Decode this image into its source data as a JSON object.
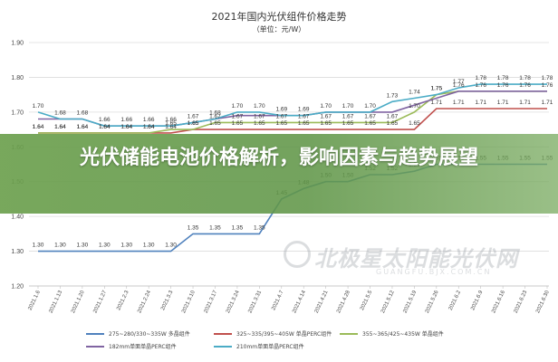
{
  "chart_data": {
    "type": "line",
    "title": "2021年国内光伏组件价格走势",
    "subtitle": "（单位：元/W）",
    "ylim": [
      1.2,
      1.9
    ],
    "yticks": [
      "1.20",
      "1.30",
      "1.40",
      "1.50",
      "1.60",
      "1.70",
      "1.80",
      "1.90"
    ],
    "categories": [
      "2021.1.6",
      "2021.1.13",
      "2021.1.20",
      "2021.1.27",
      "2021.2.3",
      "2021.2.24",
      "2021.3.3",
      "2021.3.10",
      "2021.3.17",
      "2021.3.24",
      "2021.3.31",
      "2021.4.7",
      "2021.4.14",
      "2021.4.21",
      "2021.4.28",
      "2021.5.5",
      "2021.5.12",
      "2021.5.19",
      "2021.5.26",
      "2021.6.2",
      "2021.6.9",
      "2021.6.16",
      "2021.6.23",
      "2021.6.30"
    ],
    "series": [
      {
        "name": "275~280/330~335W 多晶组件",
        "color": "#4f81bd",
        "show_labels": true,
        "values": [
          1.3,
          1.3,
          1.3,
          1.3,
          1.3,
          1.3,
          1.3,
          1.35,
          1.35,
          1.35,
          1.35,
          1.45,
          1.48,
          1.5,
          1.5,
          1.52,
          1.52,
          1.53,
          1.55,
          1.55,
          1.55,
          1.55,
          1.55,
          1.55
        ]
      },
      {
        "name": "325~335/395~405W 单晶PERC组件",
        "color": "#c0504d",
        "show_labels": true,
        "values": [
          1.64,
          1.64,
          1.64,
          1.64,
          1.64,
          1.64,
          1.64,
          1.65,
          1.65,
          1.65,
          1.65,
          1.65,
          1.65,
          1.65,
          1.65,
          1.65,
          1.65,
          1.65,
          1.71,
          1.71,
          1.71,
          1.71,
          1.71,
          1.71
        ]
      },
      {
        "name": "355~365/425~435W 单晶组件",
        "color": "#9bbb59",
        "show_labels": true,
        "values": [
          1.64,
          1.64,
          1.64,
          1.64,
          1.64,
          1.64,
          1.65,
          1.65,
          1.67,
          1.67,
          1.67,
          1.67,
          1.67,
          1.67,
          1.67,
          1.67,
          1.67,
          1.7,
          1.75,
          1.76,
          1.76,
          1.76,
          1.76,
          1.76
        ]
      },
      {
        "name": "182mm单面单晶PERC组件",
        "color": "#8064a2",
        "show_labels": false,
        "values": [
          1.68,
          1.68,
          1.68,
          1.66,
          1.66,
          1.66,
          1.66,
          1.67,
          1.68,
          1.69,
          1.69,
          1.69,
          1.69,
          1.7,
          1.7,
          1.7,
          1.7,
          1.72,
          1.74,
          1.76,
          1.76,
          1.76,
          1.76,
          1.76
        ]
      },
      {
        "name": "210mm单面单晶PERC组件",
        "color": "#4bacc6",
        "show_labels": true,
        "values": [
          1.7,
          1.68,
          1.68,
          1.66,
          1.66,
          1.66,
          1.66,
          1.67,
          1.68,
          1.7,
          1.7,
          1.69,
          1.69,
          1.7,
          1.7,
          1.7,
          1.73,
          1.74,
          1.75,
          1.77,
          1.78,
          1.78,
          1.78,
          1.78
        ]
      }
    ]
  },
  "overlay": {
    "headline": "光伏储能电池价格解析，影响因素与趋势展望"
  },
  "watermark": {
    "text": "北极星太阳能光伏网",
    "sub": "GUANGFU.BJX.COM.CN"
  }
}
